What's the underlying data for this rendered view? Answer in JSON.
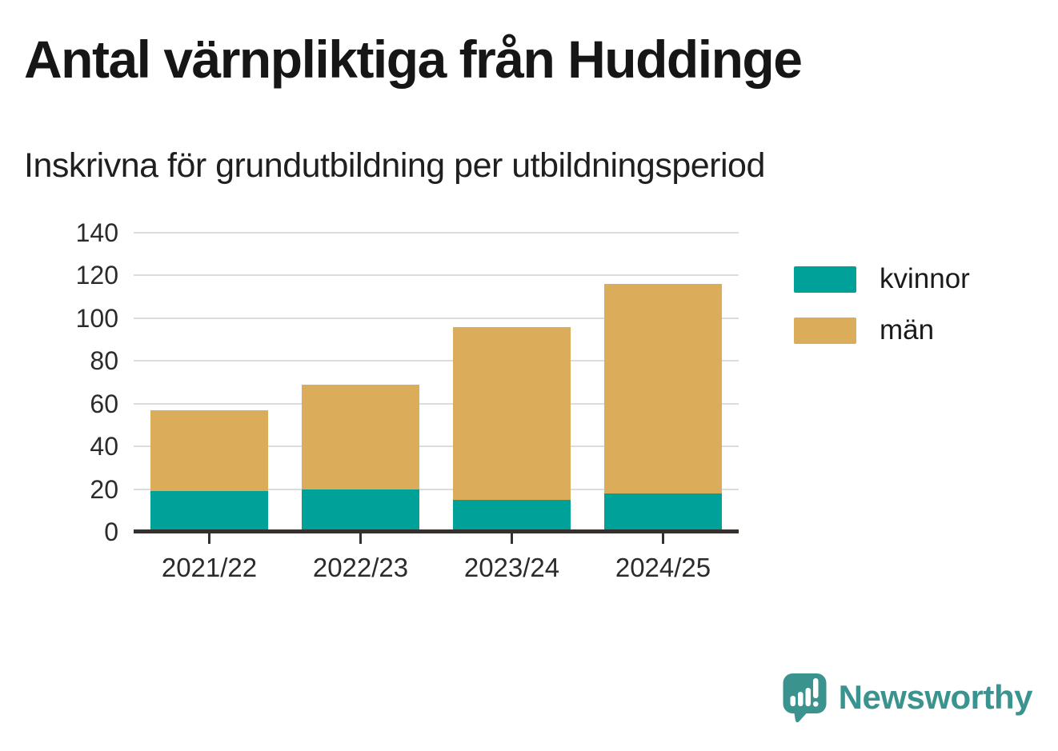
{
  "chart_data": {
    "type": "bar",
    "stacked": true,
    "title": "Antal värnpliktiga från Huddinge",
    "subtitle": "Inskrivna för grundutbildning per utbildningsperiod",
    "categories": [
      "2021/22",
      "2022/23",
      "2023/24",
      "2024/25"
    ],
    "series": [
      {
        "name": "kvinnor",
        "color": "#00A199",
        "values": [
          19,
          20,
          15,
          18
        ]
      },
      {
        "name": "män",
        "color": "#DBAD5A",
        "values": [
          38,
          49,
          81,
          98
        ]
      }
    ],
    "stack_totals": [
      57,
      69,
      96,
      116
    ],
    "ylim": [
      0,
      140
    ],
    "yticks": [
      0,
      20,
      40,
      60,
      80,
      100,
      120,
      140
    ],
    "xlabel": "",
    "ylabel": "",
    "grid": true,
    "legend_position": "right"
  },
  "branding": {
    "logo_text": "Newsworthy",
    "logo_color": "#3B938F"
  },
  "colors": {
    "background": "#ffffff",
    "gridline": "#dcdcdc",
    "axis": "#33302e",
    "text": "#1a1a1a"
  }
}
